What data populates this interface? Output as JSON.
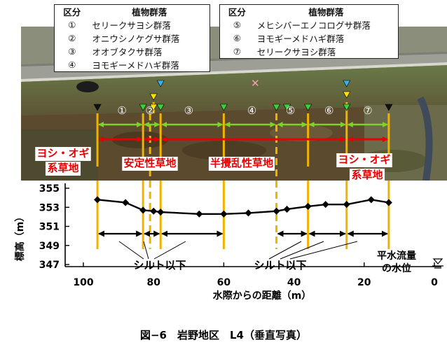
{
  "legend_left": {
    "header": [
      "区分",
      "植物群落"
    ],
    "rows": [
      {
        "id": "①",
        "name": "セリークサヨシ群落"
      },
      {
        "id": "②",
        "name": "オニウシノケグサ群落"
      },
      {
        "id": "③",
        "name": "オオブタクサ群落"
      },
      {
        "id": "④",
        "name": "ヨモギーメドハギ群落"
      }
    ]
  },
  "legend_right": {
    "header": [
      "区分",
      "植物群落"
    ],
    "rows": [
      {
        "id": "⑤",
        "name": "メヒシバーエノコログサ群落"
      },
      {
        "id": "⑥",
        "name": "ヨモギーメドハギ群落"
      },
      {
        "id": "⑦",
        "name": "セリークサヨシ群落"
      }
    ]
  },
  "zone_numbers": [
    "①",
    "②",
    "③",
    "④",
    "⑤",
    "⑥",
    "⑦"
  ],
  "zone_labels": {
    "yoshi_left": [
      "ヨシ・オギ",
      "系草地"
    ],
    "stable": "安定性草地",
    "semi": "半攪乱性草地",
    "yoshi_right": [
      "ヨシ・オギ",
      "系草地"
    ]
  },
  "annotations": {
    "silt_left": "シルト以下",
    "silt_right": "シルト以下",
    "water_level": [
      "平水流量",
      "の水位"
    ]
  },
  "caption": "図−6　岩野地区　L4（垂直写真）",
  "colors": {
    "profile_line": "#000000",
    "boundary": "#f0b400",
    "red_arrow": "#e60000",
    "green_arrow": "#7dd32a",
    "marker_green": "#37d337",
    "marker_yellow": "#ffe000",
    "marker_blue": "#3ab0ee",
    "marker_black": "#111111",
    "label_red": "#e60000"
  },
  "chart_data": {
    "type": "line",
    "xlabel": "水際からの距離（m）",
    "ylabel": "標高（m）",
    "xlim": [
      100,
      0
    ],
    "ylim": [
      347,
      355
    ],
    "x_ticks": [
      100,
      80,
      60,
      40,
      20,
      0
    ],
    "y_ticks": [
      355,
      353,
      351,
      349,
      347
    ],
    "series": [
      {
        "x": [
          96,
          88,
          83,
          80,
          78,
          67,
          60,
          53,
          45,
          42,
          36,
          31,
          25,
          18,
          13
        ],
        "y": [
          353.8,
          353.5,
          352.7,
          352.6,
          352.5,
          352.3,
          352.3,
          352.4,
          352.6,
          352.8,
          353.1,
          353.3,
          353.3,
          353.8,
          353.5
        ]
      }
    ],
    "solid_boundaries_x": [
      96,
      83,
      78,
      60,
      36,
      25,
      13
    ],
    "dashed_boundaries_x": [
      81,
      45
    ],
    "silt_intervals": [
      [
        96,
        83
      ],
      [
        83,
        78
      ],
      [
        78,
        60
      ],
      [
        45,
        36
      ],
      [
        36,
        25
      ],
      [
        25,
        13
      ]
    ]
  }
}
